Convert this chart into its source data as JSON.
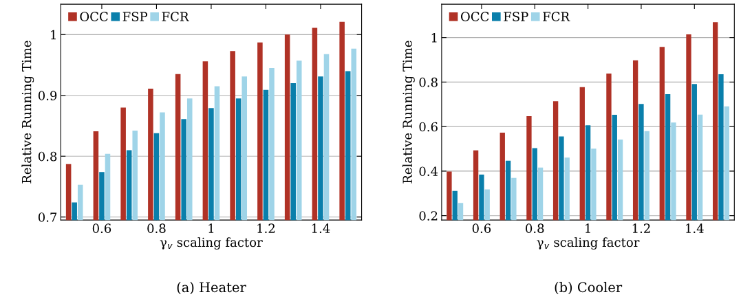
{
  "chart_data": [
    {
      "type": "bar",
      "title": "(a) Heater",
      "xlabel": "γ$_{v}$ scaling factor",
      "ylabel": "Relative Running Time",
      "x": [
        0.5,
        0.6,
        0.7,
        0.8,
        0.9,
        1.0,
        1.1,
        1.2,
        1.3,
        1.4,
        1.5
      ],
      "series": [
        {
          "name": "OCC",
          "color": "#b03226",
          "values": [
            0.787,
            0.841,
            0.88,
            0.911,
            0.935,
            0.956,
            0.973,
            0.987,
            1.0,
            1.011,
            1.021
          ]
        },
        {
          "name": "FSP",
          "color": "#0a7fab",
          "values": [
            0.724,
            0.774,
            0.81,
            0.838,
            0.861,
            0.879,
            0.895,
            0.909,
            0.92,
            0.931,
            0.94
          ]
        },
        {
          "name": "FCR",
          "color": "#9fd4e8",
          "values": [
            0.753,
            0.804,
            0.842,
            0.872,
            0.895,
            0.915,
            0.931,
            0.945,
            0.957,
            0.968,
            0.977
          ]
        }
      ],
      "xlim": [
        0.45,
        1.55
      ],
      "xticks": [
        0.6,
        0.8,
        1,
        1.2,
        1.4
      ],
      "ylim": [
        0.695,
        1.05
      ],
      "yticks": [
        0.7,
        0.8,
        0.9,
        1
      ],
      "grid": "y",
      "legend": "top left"
    },
    {
      "type": "bar",
      "title": "(b) Cooler",
      "xlabel": "γ$_{v}$ scaling factor",
      "ylabel": "Relative Running Time",
      "x": [
        0.5,
        0.6,
        0.7,
        0.8,
        0.9,
        1.0,
        1.1,
        1.2,
        1.3,
        1.4,
        1.5
      ],
      "series": [
        {
          "name": "OCC",
          "color": "#b03226",
          "values": [
            0.398,
            0.493,
            0.573,
            0.647,
            0.714,
            0.777,
            0.838,
            0.898,
            0.958,
            1.014,
            1.069
          ]
        },
        {
          "name": "FSP",
          "color": "#0a7fab",
          "values": [
            0.311,
            0.384,
            0.447,
            0.503,
            0.556,
            0.606,
            0.653,
            0.702,
            0.746,
            0.791,
            0.835
          ]
        },
        {
          "name": "FCR",
          "color": "#9fd4e8",
          "values": [
            0.257,
            0.318,
            0.37,
            0.416,
            0.461,
            0.501,
            0.542,
            0.58,
            0.618,
            0.654,
            0.691
          ]
        }
      ],
      "xlim": [
        0.45,
        1.55
      ],
      "xticks": [
        0.6,
        0.8,
        1,
        1.2,
        1.4
      ],
      "ylim": [
        0.18,
        1.15
      ],
      "yticks": [
        0.2,
        0.4,
        0.6,
        0.8,
        1
      ],
      "grid": "y",
      "legend": "top left"
    }
  ]
}
